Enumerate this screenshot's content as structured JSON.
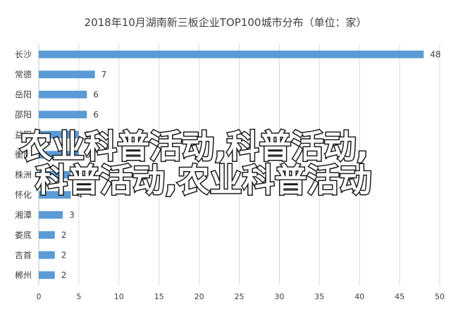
{
  "chart_data": {
    "type": "bar",
    "orientation": "horizontal",
    "title": "2018年10月湖南新三板企业TOP100城市分布（单位：家）",
    "categories": [
      "长沙",
      "常德",
      "岳阳",
      "邵阳",
      "益阳",
      "衡阳",
      "株洲",
      "怀化",
      "湘潭",
      "娄底",
      "吉首",
      "郴州"
    ],
    "values": [
      48,
      7,
      6,
      6,
      5,
      5,
      4,
      4,
      3,
      2,
      2,
      2
    ],
    "xlabel": "",
    "ylabel": "",
    "xlim": [
      0,
      50
    ],
    "x_ticks": [
      0,
      5,
      10,
      15,
      20,
      25,
      30,
      35,
      40,
      45,
      50
    ],
    "grid": true,
    "legend": "none",
    "bar_color": "#5b9bd5"
  },
  "overlay": {
    "line1": "农业科普活动,科普活动,",
    "line2": "科普活动,农业科普活动"
  }
}
